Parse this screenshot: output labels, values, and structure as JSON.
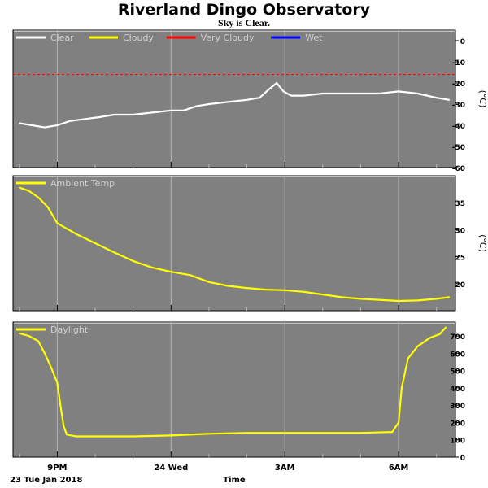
{
  "title": "Riverland Dingo Observatory",
  "subtitle": "Sky is Clear.",
  "colors": {
    "panel_bg": "#808080",
    "grid": "#b4b4b4",
    "clear": "#ffffff",
    "cloudy": "#ffff00",
    "very_cloudy": "#ff0000",
    "wet": "#0000ff"
  },
  "x_axis": {
    "label": "Time",
    "date_label": "23 Tue Jan 2018",
    "range": [
      "2018-01-23 19:50",
      "2018-01-24 07:30"
    ],
    "ticks": [
      {
        "time": "2018-01-23 21:00",
        "label": "9PM"
      },
      {
        "time": "2018-01-24 00:00",
        "label": "24 Wed"
      },
      {
        "time": "2018-01-24 03:00",
        "label": "3AM"
      },
      {
        "time": "2018-01-24 06:00",
        "label": "6AM"
      }
    ],
    "minor_ticks": [
      "2018-01-23 20:00",
      "2018-01-23 22:00",
      "2018-01-23 23:00",
      "2018-01-24 01:00",
      "2018-01-24 02:00",
      "2018-01-24 04:00",
      "2018-01-24 05:00",
      "2018-01-24 07:00"
    ]
  },
  "chart_data": [
    {
      "type": "line",
      "legend": [
        "Clear",
        "Cloudy",
        "Very Cloudy",
        "Wet"
      ],
      "ylabel": "(°C)",
      "ylim": [
        -60,
        5
      ],
      "yticks": [
        0,
        -10,
        -20,
        -30,
        -40,
        -50,
        -60
      ],
      "threshold_lines": [
        {
          "name": "Very Cloudy",
          "y": -16
        }
      ],
      "series": [
        {
          "name": "Clear",
          "points": [
            [
              "2018-01-23 20:00",
              -39
            ],
            [
              "2018-01-23 20:20",
              -40
            ],
            [
              "2018-01-23 20:40",
              -41
            ],
            [
              "2018-01-23 21:00",
              -40
            ],
            [
              "2018-01-23 21:20",
              -38
            ],
            [
              "2018-01-23 21:45",
              -37
            ],
            [
              "2018-01-23 22:10",
              -36
            ],
            [
              "2018-01-23 22:30",
              -35
            ],
            [
              "2018-01-23 23:00",
              -35
            ],
            [
              "2018-01-23 23:30",
              -34
            ],
            [
              "2018-01-24 00:00",
              -33
            ],
            [
              "2018-01-24 00:20",
              -33
            ],
            [
              "2018-01-24 00:40",
              -31
            ],
            [
              "2018-01-24 01:00",
              -30
            ],
            [
              "2018-01-24 01:30",
              -29
            ],
            [
              "2018-01-24 02:00",
              -28
            ],
            [
              "2018-01-24 02:20",
              -27
            ],
            [
              "2018-01-24 02:35",
              -23
            ],
            [
              "2018-01-24 02:47",
              -20
            ],
            [
              "2018-01-24 02:58",
              -24
            ],
            [
              "2018-01-24 03:10",
              -26
            ],
            [
              "2018-01-24 03:30",
              -26
            ],
            [
              "2018-01-24 04:00",
              -25
            ],
            [
              "2018-01-24 04:30",
              -25
            ],
            [
              "2018-01-24 05:00",
              -25
            ],
            [
              "2018-01-24 05:30",
              -25
            ],
            [
              "2018-01-24 06:00",
              -24
            ],
            [
              "2018-01-24 06:30",
              -25
            ],
            [
              "2018-01-24 07:00",
              -27
            ],
            [
              "2018-01-24 07:20",
              -28
            ]
          ]
        }
      ]
    },
    {
      "type": "line",
      "legend": [
        "Ambient Temp"
      ],
      "ylabel": "(°C)",
      "ylim": [
        15,
        40
      ],
      "yticks": [
        35,
        30,
        25,
        20
      ],
      "series": [
        {
          "name": "Ambient Temp",
          "points": [
            [
              "2018-01-23 20:00",
              37.8
            ],
            [
              "2018-01-23 20:15",
              37.2
            ],
            [
              "2018-01-23 20:30",
              36.0
            ],
            [
              "2018-01-23 20:45",
              34.2
            ],
            [
              "2018-01-23 21:00",
              31.2
            ],
            [
              "2018-01-23 21:30",
              29.2
            ],
            [
              "2018-01-23 22:00",
              27.5
            ],
            [
              "2018-01-23 22:30",
              25.8
            ],
            [
              "2018-01-23 23:00",
              24.2
            ],
            [
              "2018-01-23 23:30",
              23.0
            ],
            [
              "2018-01-24 00:00",
              22.2
            ],
            [
              "2018-01-24 00:30",
              21.6
            ],
            [
              "2018-01-24 01:00",
              20.3
            ],
            [
              "2018-01-24 01:30",
              19.6
            ],
            [
              "2018-01-24 02:00",
              19.2
            ],
            [
              "2018-01-24 02:30",
              18.9
            ],
            [
              "2018-01-24 03:00",
              18.8
            ],
            [
              "2018-01-24 03:30",
              18.5
            ],
            [
              "2018-01-24 04:00",
              18.0
            ],
            [
              "2018-01-24 04:30",
              17.5
            ],
            [
              "2018-01-24 05:00",
              17.2
            ],
            [
              "2018-01-24 05:30",
              17.0
            ],
            [
              "2018-01-24 06:00",
              16.8
            ],
            [
              "2018-01-24 06:30",
              16.9
            ],
            [
              "2018-01-24 07:00",
              17.2
            ],
            [
              "2018-01-24 07:20",
              17.5
            ]
          ]
        }
      ]
    },
    {
      "type": "line",
      "legend": [
        "Daylight"
      ],
      "ylim": [
        0,
        780
      ],
      "yticks": [
        700,
        600,
        500,
        400,
        300,
        200,
        100,
        0
      ],
      "series": [
        {
          "name": "Daylight",
          "points": [
            [
              "2018-01-23 20:00",
              715
            ],
            [
              "2018-01-23 20:15",
              700
            ],
            [
              "2018-01-23 20:30",
              670
            ],
            [
              "2018-01-23 20:40",
              600
            ],
            [
              "2018-01-23 20:50",
              520
            ],
            [
              "2018-01-23 21:00",
              430
            ],
            [
              "2018-01-23 21:05",
              300
            ],
            [
              "2018-01-23 21:10",
              180
            ],
            [
              "2018-01-23 21:15",
              130
            ],
            [
              "2018-01-23 21:30",
              120
            ],
            [
              "2018-01-23 22:00",
              120
            ],
            [
              "2018-01-23 23:00",
              120
            ],
            [
              "2018-01-24 00:00",
              125
            ],
            [
              "2018-01-24 01:00",
              135
            ],
            [
              "2018-01-24 02:00",
              140
            ],
            [
              "2018-01-24 03:00",
              140
            ],
            [
              "2018-01-24 04:00",
              140
            ],
            [
              "2018-01-24 05:00",
              140
            ],
            [
              "2018-01-24 05:50",
              145
            ],
            [
              "2018-01-24 06:00",
              200
            ],
            [
              "2018-01-24 06:05",
              400
            ],
            [
              "2018-01-24 06:15",
              570
            ],
            [
              "2018-01-24 06:30",
              640
            ],
            [
              "2018-01-24 06:50",
              690
            ],
            [
              "2018-01-24 07:05",
              710
            ],
            [
              "2018-01-24 07:15",
              750
            ]
          ]
        }
      ]
    }
  ]
}
